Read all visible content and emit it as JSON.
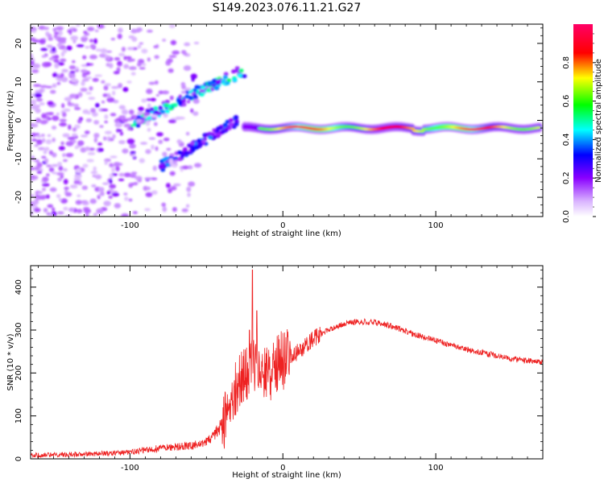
{
  "title": "S149.2023.076.11.21.G27",
  "colors": {
    "snr_line": "#ee2222",
    "frame": "#000000"
  },
  "chart_data": [
    {
      "type": "heatmap",
      "name": "spectrogram",
      "xlabel": "Height of straight line (km)",
      "ylabel": "Frequency (Hz)",
      "xlim": [
        -165,
        170
      ],
      "ylim": [
        -25,
        25
      ],
      "xticks": [
        -100,
        0,
        100
      ],
      "yticks": [
        -20,
        -10,
        0,
        10,
        20
      ],
      "colorbar": {
        "label": "Normalized spectral amplitude",
        "range": [
          0,
          1
        ],
        "ticks": [
          "0.0",
          "0.2",
          "0.4",
          "0.6",
          "0.8"
        ],
        "colormap": [
          "#ffffff",
          "#8a00ff",
          "#0000ff",
          "#00ffff",
          "#00ff00",
          "#ffff00",
          "#ff0000",
          "#ff0066"
        ]
      },
      "features": [
        {
          "name": "direct signal track",
          "x_range": [
            -25,
            168
          ],
          "freq_hz": -2,
          "amplitude": 0.75
        },
        {
          "name": "upper diagonal branch",
          "x_range": [
            -100,
            -25
          ],
          "freq_hz": [
            -1,
            13
          ],
          "amplitude": 0.3
        },
        {
          "name": "lower diagonal branch",
          "x_range": [
            -80,
            -30
          ],
          "freq_hz": [
            -12,
            0
          ],
          "amplitude": 0.25
        },
        {
          "name": "diffuse noise",
          "x_range": [
            -165,
            -55
          ],
          "freq_hz": [
            -25,
            25
          ],
          "amplitude": 0.1
        }
      ]
    },
    {
      "type": "line",
      "name": "snr",
      "xlabel": "Height of straight line (km)",
      "ylabel": "SNR (10 * v/v)",
      "xlim": [
        -165,
        170
      ],
      "ylim": [
        0,
        450
      ],
      "xticks": [
        -100,
        0,
        100
      ],
      "yticks": [
        0,
        100,
        200,
        300,
        400
      ],
      "series": [
        {
          "name": "SNR",
          "x": [
            -165,
            -140,
            -120,
            -100,
            -90,
            -80,
            -70,
            -60,
            -50,
            -45,
            -40,
            -35,
            -30,
            -25,
            -20,
            -15,
            -10,
            -5,
            0,
            10,
            20,
            30,
            40,
            50,
            60,
            70,
            80,
            90,
            100,
            110,
            120,
            130,
            140,
            150,
            160,
            170
          ],
          "y": [
            8,
            10,
            12,
            15,
            20,
            25,
            28,
            30,
            40,
            55,
            80,
            120,
            170,
            200,
            210,
            200,
            190,
            220,
            230,
            250,
            280,
            300,
            315,
            320,
            318,
            310,
            298,
            285,
            275,
            265,
            255,
            248,
            240,
            233,
            228,
            225
          ],
          "spikes": [
            {
              "x": -20,
              "y": 440
            },
            {
              "x": -17,
              "y": 345
            },
            {
              "x": -22,
              "y": 300
            }
          ]
        }
      ]
    }
  ]
}
